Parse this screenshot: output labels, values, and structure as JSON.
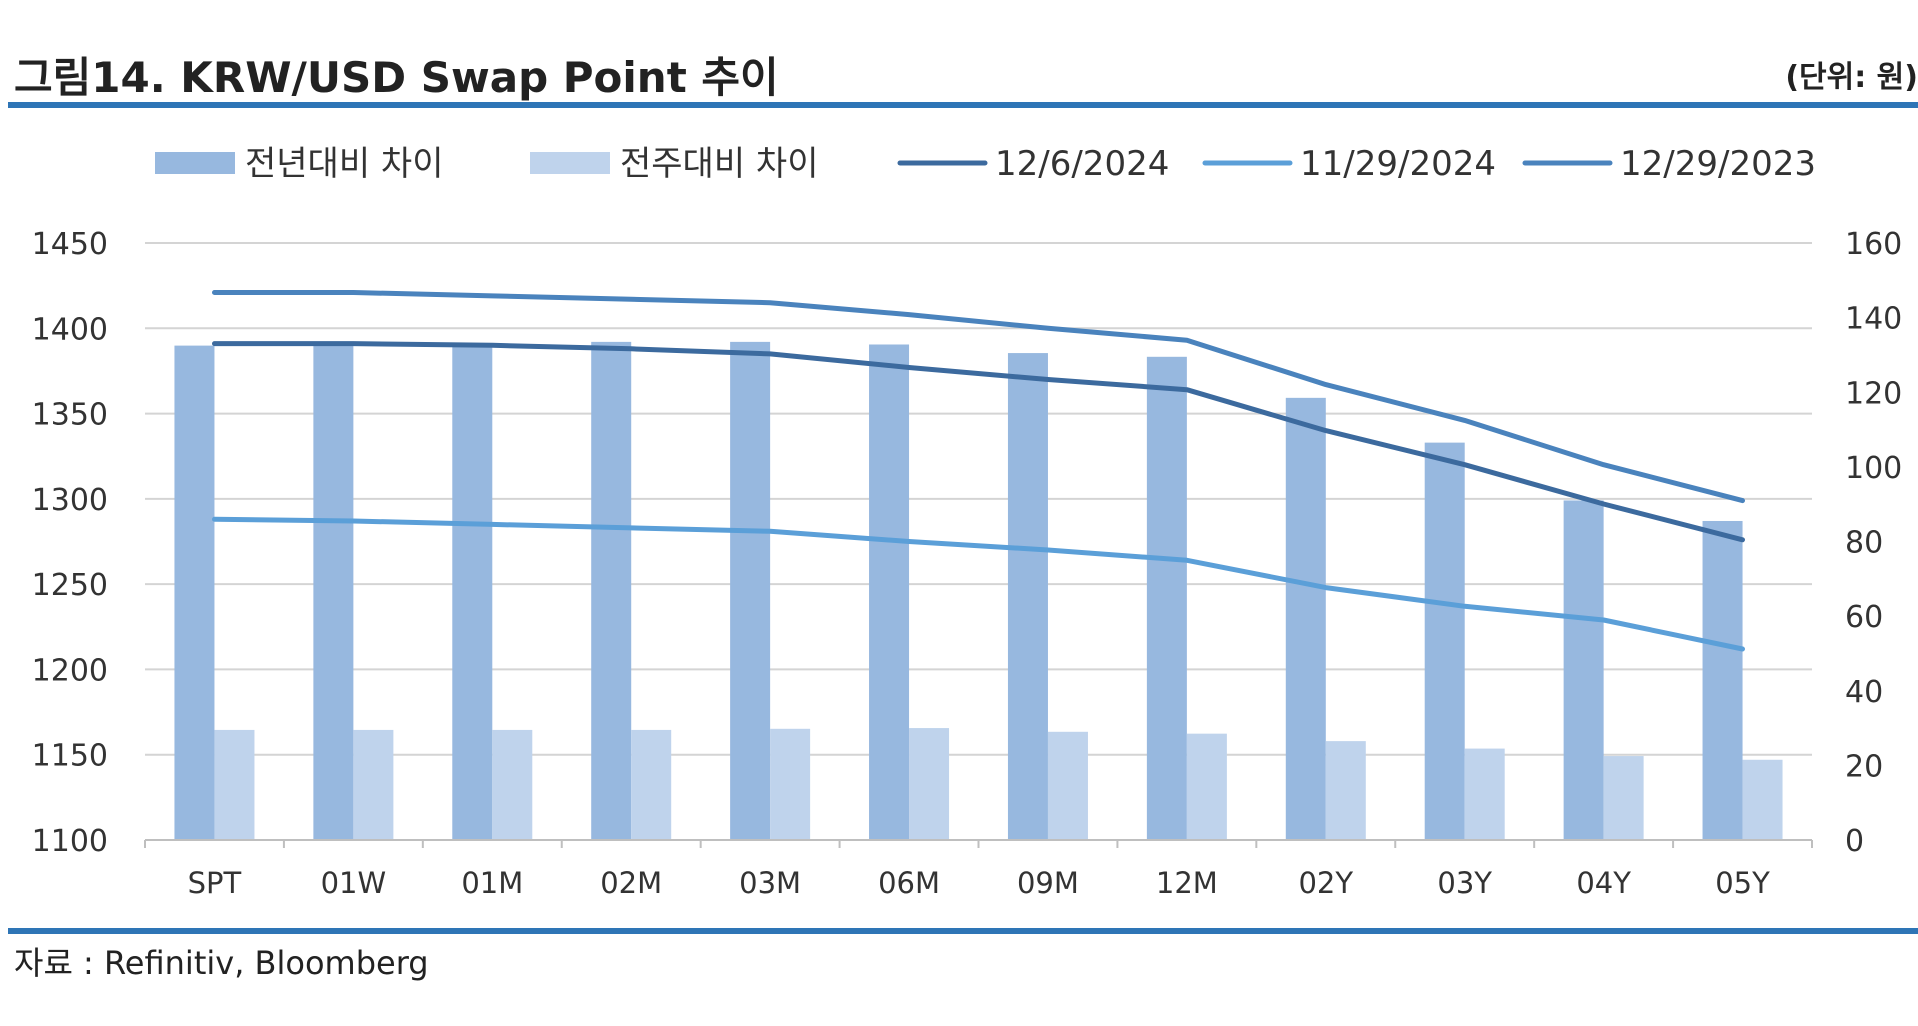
{
  "figure": {
    "title": "그림14. KRW/USD Swap Point 추이",
    "unit": "(단위: 원)",
    "source": "자료 : Refinitiv, Bloomberg",
    "accent_color": "#2e75b6"
  },
  "chart_data": {
    "type": "bar",
    "title": "그림14. KRW/USD Swap Point 추이",
    "categories": [
      "SPT",
      "01W",
      "01M",
      "02M",
      "03M",
      "06M",
      "09M",
      "12M",
      "02Y",
      "03Y",
      "04Y",
      "05Y"
    ],
    "y_left": {
      "ylim": [
        1100,
        1450
      ],
      "ticks": [
        1100,
        1150,
        1200,
        1250,
        1300,
        1350,
        1400,
        1450
      ]
    },
    "y_right": {
      "ylim": [
        0,
        160
      ],
      "ticks": [
        0,
        20,
        40,
        60,
        80,
        100,
        120,
        140,
        160
      ]
    },
    "grid": true,
    "legend_position": "top",
    "series": [
      {
        "name": "전년대비 차이",
        "kind": "bar",
        "axis": "right",
        "color": "#97b8df",
        "values": [
          132.5,
          133,
          132.5,
          133.5,
          133.5,
          132.8,
          130.5,
          129.5,
          118.5,
          106.5,
          91,
          85.5
        ]
      },
      {
        "name": "전주대비 차이",
        "kind": "bar",
        "axis": "right",
        "color": "#bfd3ec",
        "values": [
          29.5,
          29.5,
          29.5,
          29.5,
          29.8,
          30,
          29,
          28.5,
          26.5,
          24.5,
          22.5,
          21.5
        ]
      },
      {
        "name": "12/6/2024",
        "kind": "line",
        "axis": "left",
        "color": "#3c6a9e",
        "values": [
          1391,
          1391,
          1390,
          1388,
          1385,
          1377,
          1370,
          1364,
          1340,
          1320,
          1297,
          1276
        ]
      },
      {
        "name": "11/29/2024",
        "kind": "line",
        "axis": "left",
        "color": "#5b9fd8",
        "values": [
          1288,
          1287,
          1285,
          1283,
          1281,
          1275,
          1270,
          1264,
          1248,
          1237,
          1229,
          1212
        ]
      },
      {
        "name": "12/29/2023",
        "kind": "line",
        "axis": "left",
        "color": "#4a83bd",
        "values": [
          1421,
          1421,
          1419,
          1417,
          1415,
          1408,
          1400,
          1393,
          1367,
          1346,
          1320,
          1299
        ]
      }
    ]
  }
}
